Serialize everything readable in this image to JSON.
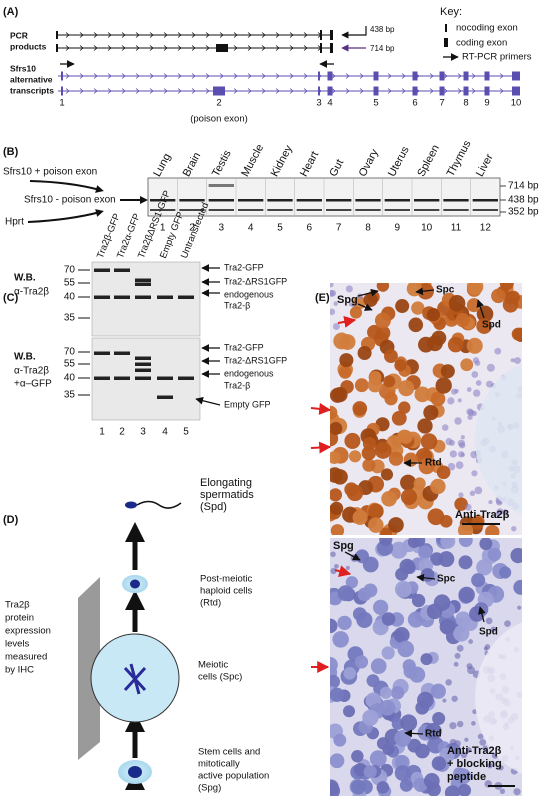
{
  "panel_a": {
    "label": "(A)",
    "pcr_products": [
      "PCR",
      "products"
    ],
    "sizes": [
      "438 bp",
      "714 bp"
    ],
    "key": {
      "title": "Key:",
      "items": [
        "nocoding exon",
        "coding exon",
        "RT-PCR primers"
      ]
    },
    "transcripts_label": [
      "Sfrs10",
      "alternative",
      "transcripts"
    ],
    "exons": [
      "1",
      "2",
      "3",
      "4",
      "5",
      "6",
      "7",
      "8",
      "9",
      "10"
    ],
    "poison_note": "(poison exon)"
  },
  "panel_b": {
    "label": "(B)",
    "tissues": [
      "Lung",
      "Brain",
      "Testis",
      "Muscle",
      "Kidney",
      "Heart",
      "Gut",
      "Ovary",
      "Uterus",
      "Spleen",
      "Thymus",
      "Liver"
    ],
    "lanes": [
      "1",
      "2",
      "3",
      "4",
      "5",
      "6",
      "7",
      "8",
      "9",
      "10",
      "11",
      "12"
    ],
    "bands": [
      "Sfrs10 + poison exon",
      "Sfrs10 - poison exon",
      "Hprt"
    ],
    "sizes": [
      "714 bp",
      "438 bp",
      "352 bp"
    ]
  },
  "panel_c": {
    "label": "(C)",
    "lanes": [
      "Tra2β-GFP",
      "Tra2α-GFP",
      "Tra2βΔRS1-GFP",
      "Empty GFP",
      "Untransfected"
    ],
    "lane_numbers": [
      "1",
      "2",
      "3",
      "4",
      "5"
    ],
    "blots": [
      {
        "antibody": [
          "W.B.",
          "α-Tra2β"
        ],
        "markers": [
          70,
          55,
          40,
          35
        ],
        "bands": [
          "Tra2-GFP",
          "Tra2-ΔRS1GFP",
          "endogenous",
          "Tra2-β"
        ]
      },
      {
        "antibody": [
          "W.B.",
          "α-Tra2β",
          "+α–GFP"
        ],
        "markers": [
          70,
          55,
          40,
          35
        ],
        "bands": [
          "Tra2-GFP",
          "Tra2-ΔRS1GFP",
          "endogenous",
          "Tra2-β",
          "Empty GFP"
        ]
      }
    ]
  },
  "panel_d": {
    "label": "(D)",
    "stages": [
      [
        "Elongating",
        "spermatids",
        "(Spd)"
      ],
      [
        "Post-meiotic",
        "haploid cells",
        "(Rtd)"
      ],
      [
        "Meiotic",
        "cells (Spc)"
      ],
      [
        "Stem cells and",
        "mitotically",
        "active population",
        "(Spg)"
      ]
    ],
    "gradient_label": [
      "Tra2β",
      "protein",
      "expression",
      "levels",
      "measured",
      "by IHC"
    ]
  },
  "panel_e": {
    "label": "(E)",
    "top": {
      "cells": [
        "Spg",
        "Spc",
        "Spd",
        "Rtd"
      ],
      "stain": [
        "Anti-Tra2β"
      ]
    },
    "bottom": {
      "cells": [
        "Spg",
        "Spc",
        "Spd",
        "Rtd"
      ],
      "stain": [
        "Anti-Tra2β",
        "+ blocking",
        "peptide"
      ]
    }
  }
}
